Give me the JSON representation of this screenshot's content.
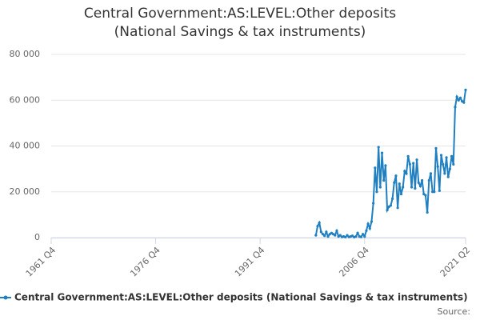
{
  "chart_data": {
    "type": "line",
    "title": "Central Government:AS:LEVEL:Other deposits (National Savings & tax instruments)",
    "source": "Source:",
    "categories": [
      "1961 Q4",
      null,
      null,
      null,
      null,
      null,
      null,
      null,
      null,
      null,
      null,
      null,
      null,
      null,
      null,
      null,
      null,
      null,
      null,
      null,
      null,
      null,
      null,
      null,
      null,
      null,
      null,
      null,
      null,
      null,
      null,
      null,
      null,
      null,
      null,
      null,
      null,
      null,
      null,
      null,
      null,
      null,
      null,
      null,
      null,
      null,
      null,
      null,
      null,
      null,
      null,
      null,
      null,
      null,
      null,
      null,
      null,
      null,
      null,
      null,
      "1976 Q4",
      null,
      null,
      null,
      null,
      null,
      null,
      null,
      null,
      null,
      null,
      null,
      null,
      null,
      null,
      null,
      null,
      null,
      null,
      null,
      null,
      null,
      null,
      null,
      null,
      null,
      null,
      null,
      null,
      null,
      null,
      null,
      null,
      null,
      null,
      null,
      null,
      null,
      null,
      null,
      null,
      null,
      null,
      null,
      null,
      null,
      null,
      null,
      null,
      null,
      null,
      null,
      null,
      null,
      null,
      null,
      null,
      null,
      null,
      null,
      "1991 Q4",
      null,
      null,
      null,
      null,
      null,
      null,
      null,
      null,
      null,
      null,
      null,
      null,
      null,
      null,
      null,
      null,
      null,
      null,
      null,
      null,
      null,
      null,
      null,
      null,
      null,
      null,
      null,
      null,
      null,
      null,
      null,
      null,
      null,
      null,
      null,
      null,
      null,
      null,
      null,
      null,
      null,
      null,
      null,
      null,
      null,
      null,
      null,
      null,
      null,
      null,
      null,
      null,
      null,
      null,
      null,
      null,
      null,
      null,
      null,
      "2006 Q4",
      null,
      null,
      null,
      null,
      null,
      null,
      null,
      null,
      null,
      null,
      null,
      null,
      null,
      null,
      null,
      null,
      null,
      null,
      null,
      null,
      null,
      null,
      null,
      null,
      null,
      null,
      null,
      null,
      null,
      null,
      null,
      null,
      null,
      null,
      null,
      null,
      null,
      null,
      null,
      null,
      null,
      null,
      null,
      null,
      null,
      null,
      null,
      null,
      null,
      null,
      null,
      null,
      null,
      null,
      null,
      null,
      null,
      "2021 Q2"
    ],
    "series": [
      {
        "name": "Central Government:AS:LEVEL:Other deposits (National Savings & tax instruments)",
        "color": "#1f7fc0",
        "values": [
          null,
          null,
          null,
          null,
          null,
          null,
          null,
          null,
          null,
          null,
          null,
          null,
          null,
          null,
          null,
          null,
          null,
          null,
          null,
          null,
          null,
          null,
          null,
          null,
          null,
          null,
          null,
          null,
          null,
          null,
          null,
          null,
          null,
          null,
          null,
          null,
          null,
          null,
          null,
          null,
          null,
          null,
          null,
          null,
          null,
          null,
          null,
          null,
          null,
          null,
          null,
          null,
          null,
          null,
          null,
          null,
          null,
          null,
          null,
          null,
          null,
          null,
          null,
          null,
          null,
          null,
          null,
          null,
          null,
          null,
          null,
          null,
          null,
          null,
          null,
          null,
          null,
          null,
          null,
          null,
          null,
          null,
          null,
          null,
          null,
          null,
          null,
          null,
          null,
          null,
          null,
          null,
          null,
          null,
          null,
          null,
          null,
          null,
          null,
          null,
          null,
          null,
          null,
          null,
          null,
          null,
          null,
          null,
          null,
          null,
          null,
          null,
          null,
          null,
          null,
          null,
          null,
          null,
          null,
          null,
          null,
          null,
          null,
          null,
          null,
          null,
          null,
          null,
          null,
          null,
          null,
          null,
          null,
          null,
          null,
          null,
          null,
          null,
          null,
          null,
          null,
          null,
          null,
          null,
          null,
          null,
          null,
          null,
          null,
          null,
          null,
          null,
          1000,
          5000,
          6500,
          2500,
          1500,
          800,
          2500,
          500,
          1500,
          2000,
          1500,
          1000,
          3000,
          500,
          1000,
          300,
          500,
          200,
          1000,
          300,
          500,
          800,
          200,
          500,
          2000,
          500,
          300,
          1500,
          500,
          3000,
          6000,
          4000,
          7000,
          15000,
          30500,
          20000,
          39500,
          22000,
          37000,
          25000,
          31500,
          12000,
          13500,
          14000,
          17000,
          24000,
          27000,
          13000,
          23500,
          19000,
          22000,
          29000,
          28000,
          35500,
          32000,
          22000,
          32500,
          21500,
          34000,
          24000,
          22500,
          25000,
          19000,
          18500,
          11000,
          25000,
          28000,
          20000,
          20000,
          39000,
          31000,
          20500,
          36000,
          32000,
          28000,
          35000,
          26500,
          30000,
          35500,
          32000,
          57000,
          61500,
          60000,
          61000,
          59500,
          59000,
          64500
        ]
      }
    ],
    "ylim": [
      0,
      80000
    ],
    "yticks": [
      0,
      {
        "value": 20000,
        "label": "20 000"
      },
      {
        "value": 40000,
        "label": "40 000"
      },
      {
        "value": 60000,
        "label": "60 000"
      },
      {
        "value": 80000,
        "label": "80 000"
      }
    ],
    "grid": true
  }
}
